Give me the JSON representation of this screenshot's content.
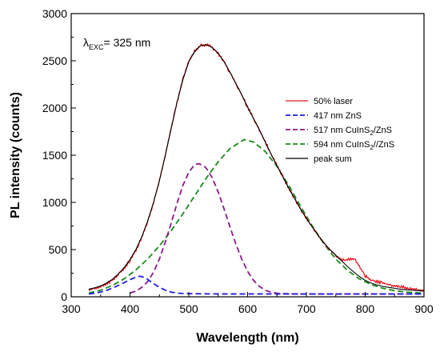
{
  "chart_data": {
    "type": "line",
    "xlabel": "Wavelength (nm)",
    "ylabel": "PL intensity (counts)",
    "xlim": [
      300,
      900
    ],
    "ylim": [
      0,
      3000
    ],
    "xticks": [
      300,
      400,
      500,
      600,
      700,
      800,
      900
    ],
    "yticks": [
      0,
      500,
      1000,
      1500,
      2000,
      2500,
      3000
    ],
    "grid": false,
    "legend_position": "right",
    "annotation": {
      "lambda": "λ",
      "subscript": "EXC",
      "value": "= 325 nm"
    },
    "series": [
      {
        "name": "50% laser",
        "color": "#e8141c",
        "style": "solid",
        "x": [
          330,
          340,
          350,
          360,
          370,
          380,
          390,
          400,
          410,
          420,
          430,
          440,
          450,
          460,
          470,
          480,
          490,
          500,
          510,
          520,
          530,
          540,
          550,
          560,
          570,
          580,
          590,
          600,
          610,
          620,
          630,
          640,
          650,
          660,
          670,
          680,
          690,
          700,
          710,
          720,
          730,
          740,
          750,
          760,
          770,
          780,
          790,
          800,
          810,
          820,
          830,
          840,
          850,
          860,
          870,
          880,
          890,
          900
        ],
        "y": [
          70,
          85,
          105,
          135,
          175,
          230,
          300,
          385,
          490,
          630,
          800,
          1000,
          1230,
          1500,
          1790,
          2060,
          2310,
          2500,
          2600,
          2660,
          2670,
          2640,
          2580,
          2490,
          2380,
          2260,
          2140,
          2010,
          1890,
          1770,
          1640,
          1510,
          1390,
          1270,
          1150,
          1040,
          930,
          830,
          740,
          650,
          570,
          500,
          440,
          400,
          390,
          410,
          330,
          220,
          175,
          160,
          145,
          130,
          115,
          105,
          95,
          85,
          75,
          65
        ]
      },
      {
        "name": "417 nm ZnS",
        "name_parts": [
          "417 nm ZnS"
        ],
        "color": "#1f1fe0",
        "style": "dashed",
        "x": [
          330,
          340,
          350,
          360,
          370,
          380,
          390,
          400,
          410,
          417,
          425,
          430,
          440,
          450,
          460,
          470,
          480,
          490,
          500,
          550,
          600,
          650,
          700,
          750,
          800,
          850,
          900
        ],
        "y": [
          30,
          38,
          50,
          68,
          92,
          120,
          150,
          182,
          208,
          218,
          205,
          185,
          140,
          100,
          70,
          50,
          40,
          35,
          33,
          30,
          30,
          30,
          30,
          30,
          30,
          30,
          30
        ]
      },
      {
        "name": "517 nm CuInS2/ZnS",
        "name_parts": [
          "517 nm CuInS",
          "2",
          "/ZnS"
        ],
        "color": "#8b1a8b",
        "style": "dashed",
        "x": [
          400,
          410,
          420,
          430,
          440,
          450,
          460,
          470,
          480,
          490,
          500,
          510,
          517,
          525,
          530,
          540,
          550,
          560,
          570,
          580,
          590,
          600,
          610,
          620,
          630,
          640,
          650,
          660,
          670,
          680,
          690,
          700,
          750,
          800,
          850,
          900
        ],
        "y": [
          40,
          60,
          100,
          160,
          260,
          400,
          580,
          780,
          990,
          1180,
          1320,
          1400,
          1410,
          1390,
          1360,
          1260,
          1110,
          930,
          740,
          560,
          400,
          270,
          175,
          110,
          70,
          48,
          38,
          34,
          32,
          30,
          30,
          30,
          30,
          30,
          30,
          30
        ]
      },
      {
        "name": "594 nm CuInS2//ZnS",
        "name_parts": [
          "594 nm CuInS",
          "2",
          "//ZnS"
        ],
        "color": "#1a8a1a",
        "style": "dashed",
        "x": [
          330,
          350,
          370,
          390,
          410,
          430,
          450,
          470,
          490,
          510,
          530,
          550,
          570,
          594,
          610,
          630,
          650,
          670,
          690,
          710,
          730,
          750,
          770,
          790,
          810,
          830,
          850,
          870,
          890,
          900
        ],
        "y": [
          40,
          70,
          120,
          190,
          285,
          400,
          540,
          700,
          880,
          1070,
          1260,
          1430,
          1570,
          1665,
          1640,
          1540,
          1380,
          1180,
          960,
          750,
          560,
          400,
          280,
          190,
          130,
          90,
          65,
          50,
          42,
          40
        ]
      },
      {
        "name": "peak sum",
        "color": "#000000",
        "style": "solid",
        "x": [
          330,
          340,
          350,
          360,
          370,
          380,
          390,
          400,
          410,
          420,
          430,
          440,
          450,
          460,
          470,
          480,
          490,
          500,
          510,
          520,
          530,
          540,
          550,
          560,
          570,
          580,
          590,
          600,
          610,
          620,
          630,
          640,
          650,
          660,
          670,
          680,
          690,
          700,
          710,
          720,
          730,
          740,
          750,
          760,
          770,
          780,
          790,
          800,
          810,
          820,
          830,
          840,
          850,
          860,
          870,
          880,
          890,
          900
        ],
        "y": [
          80,
          95,
          115,
          145,
          185,
          240,
          310,
          395,
          500,
          635,
          800,
          1000,
          1230,
          1500,
          1780,
          2060,
          2300,
          2490,
          2600,
          2660,
          2670,
          2640,
          2580,
          2490,
          2380,
          2260,
          2140,
          2010,
          1890,
          1770,
          1640,
          1510,
          1390,
          1270,
          1150,
          1040,
          930,
          830,
          740,
          650,
          570,
          500,
          440,
          380,
          320,
          265,
          215,
          175,
          145,
          125,
          110,
          100,
          90,
          80,
          75,
          70,
          65,
          60
        ]
      }
    ]
  }
}
